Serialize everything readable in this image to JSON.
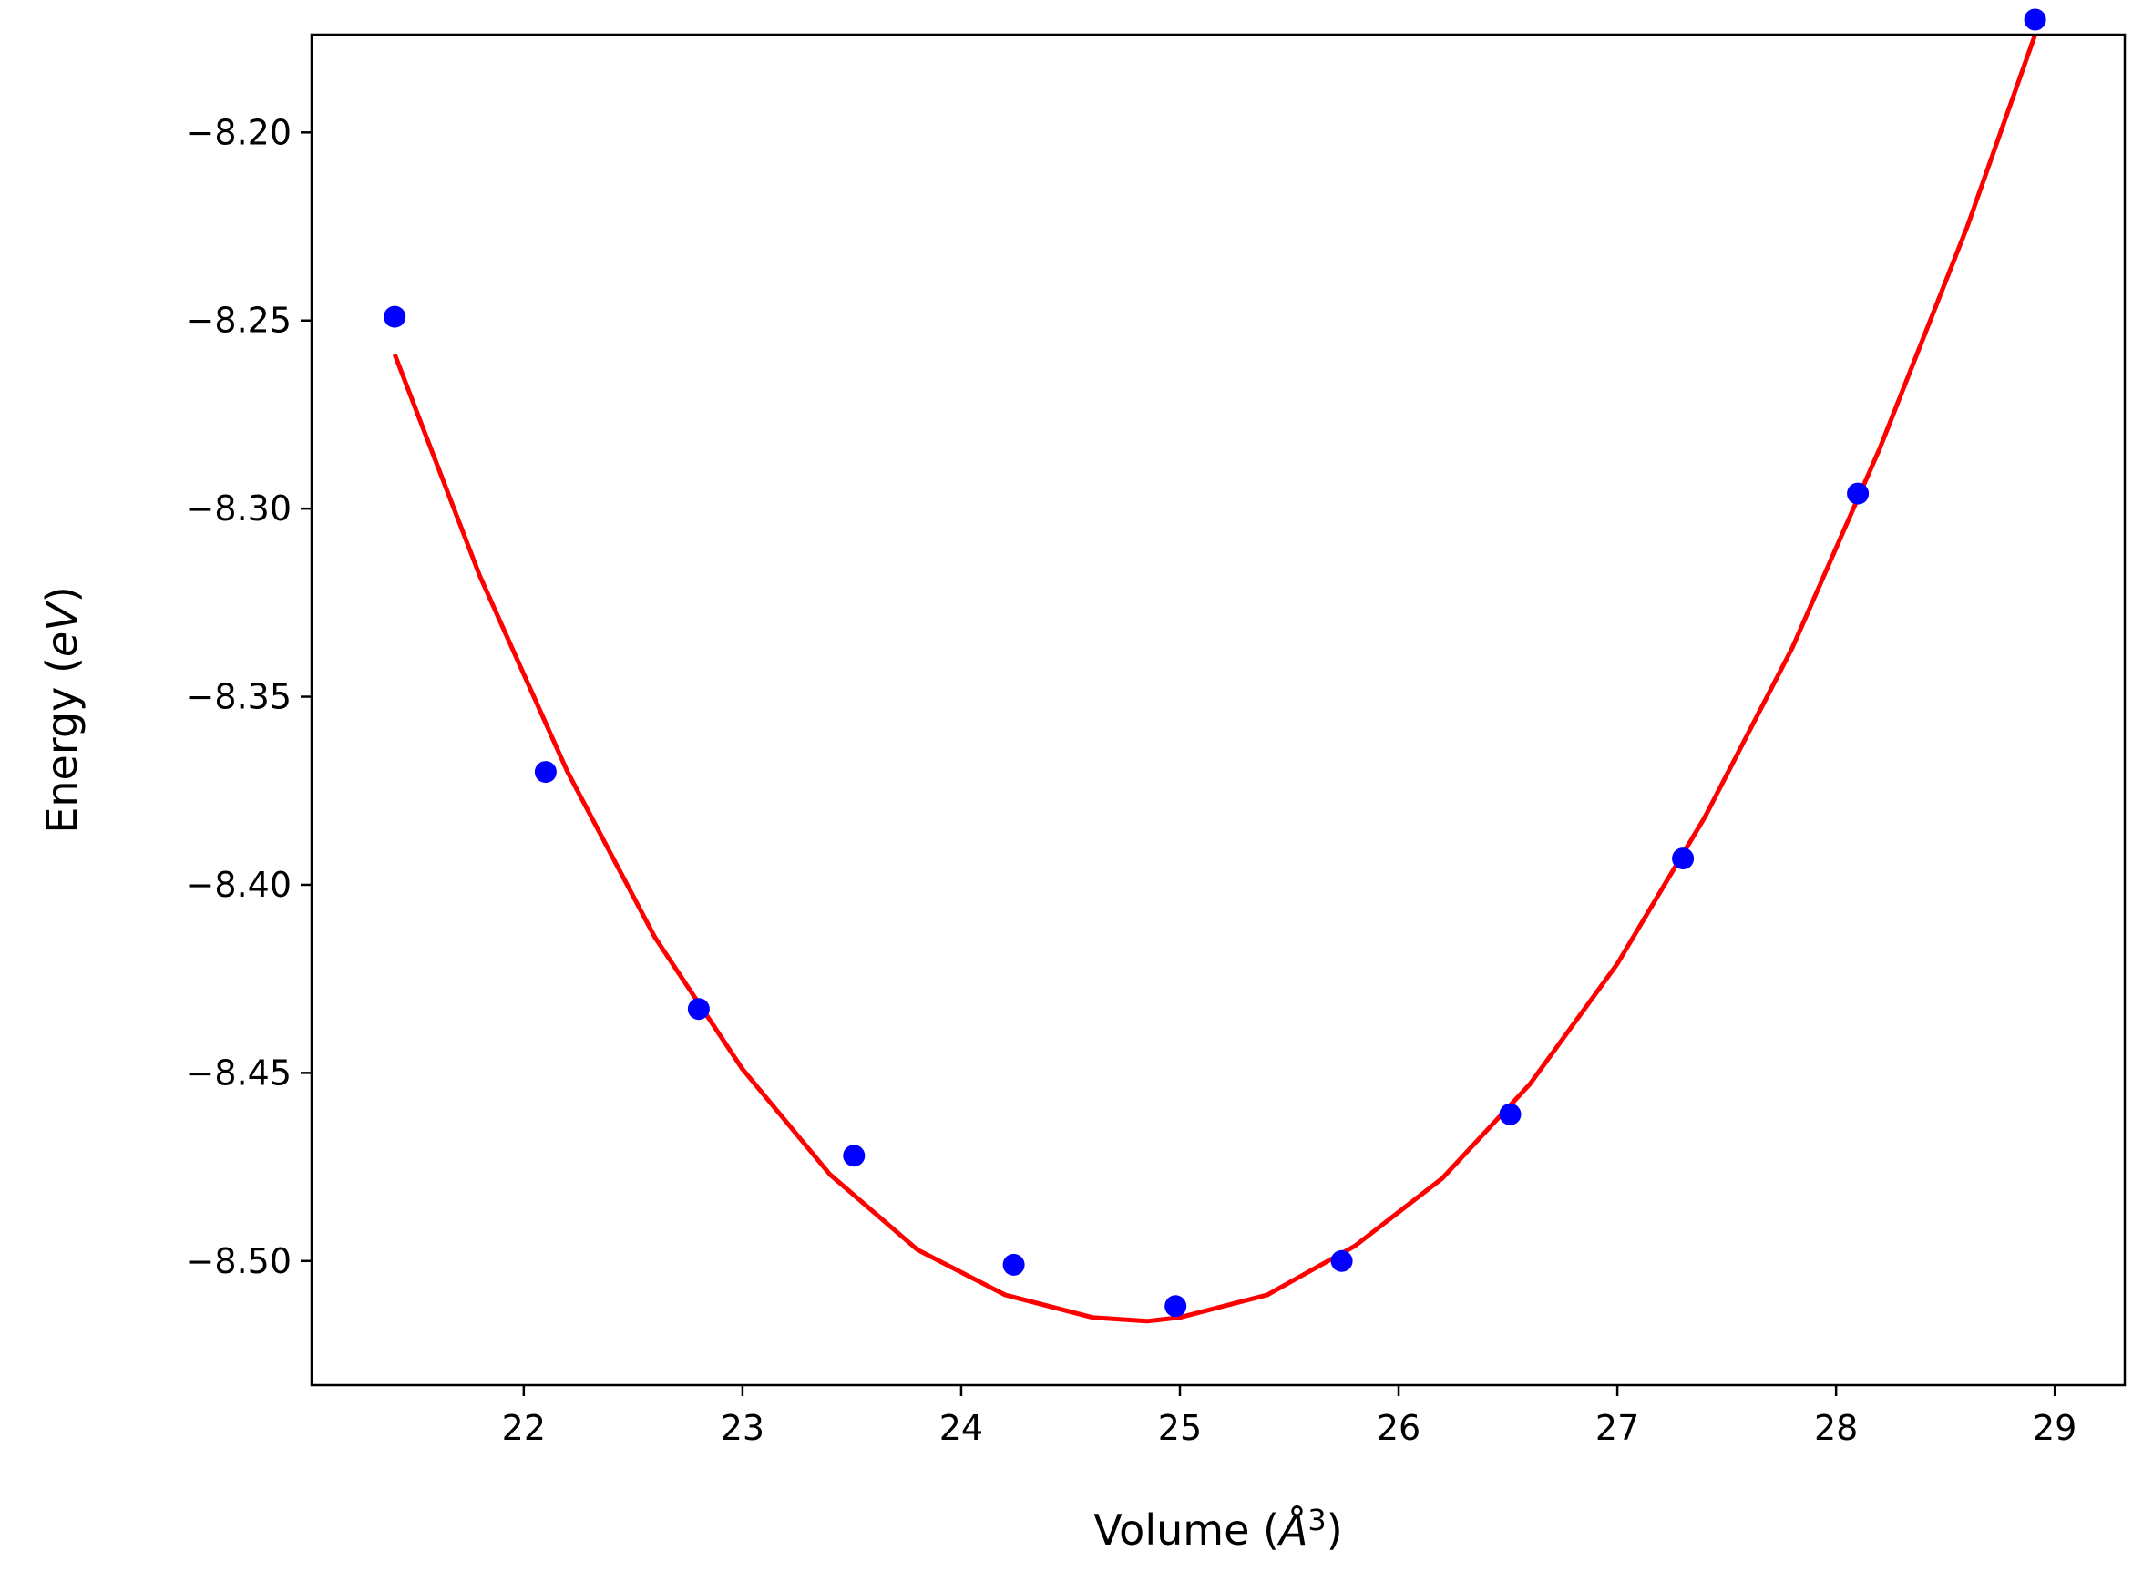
{
  "chart_data": {
    "type": "scatter",
    "xlabel": "Volume (Å³)",
    "xlabel_parts": {
      "main": "Volume (",
      "symbol": "Å",
      "exp": "3",
      "close": ")"
    },
    "ylabel": "Energy (eV)",
    "ylabel_parts": {
      "main": "Energy (",
      "unit": "eV",
      "close": ")"
    },
    "xlim": [
      21.03,
      29.32
    ],
    "ylim": [
      -8.533,
      -8.174
    ],
    "xticks": [
      22,
      23,
      24,
      25,
      26,
      27,
      28,
      29
    ],
    "yticks": [
      -8.2,
      -8.25,
      -8.3,
      -8.35,
      -8.4,
      -8.45,
      -8.5
    ],
    "ytick_labels": [
      "−8.20",
      "−8.25",
      "−8.30",
      "−8.35",
      "−8.40",
      "−8.45",
      "−8.50"
    ],
    "grid": false,
    "series": [
      {
        "kind": "points",
        "color": "#0000ff",
        "x": [
          21.41,
          22.1,
          22.8,
          23.51,
          24.24,
          24.98,
          25.74,
          26.51,
          27.3,
          28.1,
          28.91
        ],
        "y": [
          -8.249,
          -8.37,
          -8.433,
          -8.472,
          -8.501,
          -8.512,
          -8.5,
          -8.461,
          -8.393,
          -8.296,
          -8.17
        ]
      },
      {
        "kind": "line",
        "color": "#ff0000",
        "x": [
          21.41,
          21.8,
          22.2,
          22.6,
          23.0,
          23.4,
          23.8,
          24.2,
          24.6,
          24.85,
          25.0,
          25.4,
          25.8,
          26.2,
          26.6,
          27.0,
          27.4,
          27.8,
          28.2,
          28.6,
          28.91
        ],
        "y": [
          -8.259,
          -8.318,
          -8.37,
          -8.414,
          -8.449,
          -8.477,
          -8.497,
          -8.509,
          -8.515,
          -8.516,
          -8.515,
          -8.509,
          -8.496,
          -8.478,
          -8.453,
          -8.421,
          -8.382,
          -8.337,
          -8.284,
          -8.225,
          -8.174
        ]
      }
    ]
  }
}
